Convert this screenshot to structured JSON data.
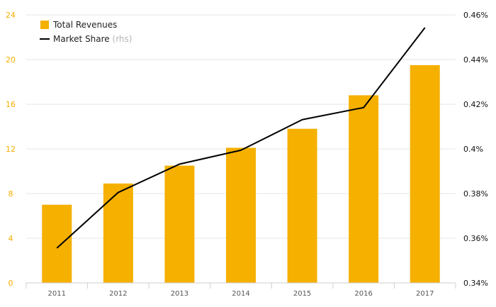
{
  "chart_data": {
    "type": "bar",
    "categories": [
      "2011",
      "2012",
      "2013",
      "2014",
      "2015",
      "2016",
      "2017"
    ],
    "series": [
      {
        "name": "Total Revenues",
        "type": "bar",
        "axis": "left",
        "values": [
          7.0,
          8.9,
          10.5,
          12.1,
          13.8,
          16.8,
          19.5
        ]
      },
      {
        "name": "Market Share",
        "type": "line",
        "axis": "right",
        "values": [
          0.3556,
          0.3805,
          0.3932,
          0.3994,
          0.4131,
          0.4185,
          0.4543
        ]
      }
    ],
    "legend": {
      "position": "top-left",
      "items": [
        {
          "label": "Total Revenues",
          "note": "",
          "color": "#f5b000",
          "kind": "bar"
        },
        {
          "label": "Market Share",
          "note": "(rhs)",
          "color": "#000000",
          "kind": "line"
        }
      ]
    },
    "y_left": {
      "ylim": [
        0,
        24
      ],
      "ticks": [
        "0",
        "4",
        "8",
        "12",
        "16",
        "20",
        "24"
      ]
    },
    "y_right": {
      "ylim": [
        0.34,
        0.46
      ],
      "ticks": [
        "0.34%",
        "0.36%",
        "0.38%",
        "0.4%",
        "0.42%",
        "0.44%",
        "0.46%"
      ]
    },
    "grid": true,
    "colors": {
      "bar": "#f5b000",
      "line": "#000000",
      "grid": "#e6e6e6",
      "left_tick": "#f5b000",
      "right_tick": "#111111",
      "x_tick": "#555555"
    }
  }
}
